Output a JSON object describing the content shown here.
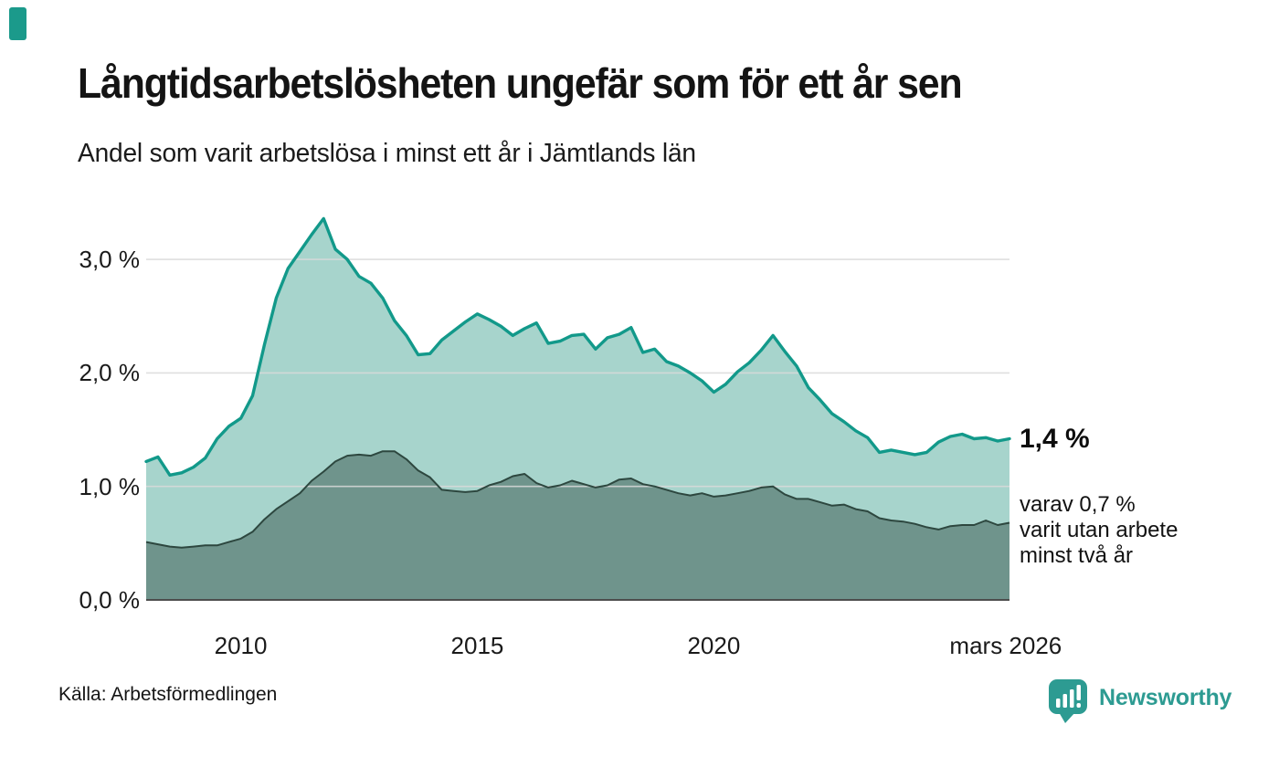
{
  "brand_color": "#2D9B92",
  "accent_color": "#1B9A8B",
  "chart_data": {
    "type": "area",
    "title": "Långtidsarbetslösheten ungefär som för ett år sen",
    "subtitle": "Andel som varit arbetslösa i minst ett år i Jämtlands län",
    "unit": "%",
    "grid": true,
    "legend": "none",
    "x_start": 2008.0,
    "x_end": 2026.25,
    "x_step": 0.25,
    "ylim": [
      0,
      3.6
    ],
    "y_ticks": [
      {
        "value": 3.0,
        "label": "3,0 %"
      },
      {
        "value": 2.0,
        "label": "2,0 %"
      },
      {
        "value": 1.0,
        "label": "1,0 %"
      },
      {
        "value": 0.0,
        "label": "0,0 %"
      }
    ],
    "x_ticks": [
      {
        "x": 2010,
        "label": "2010"
      },
      {
        "x": 2015,
        "label": "2015"
      },
      {
        "x": 2020,
        "label": "2020"
      },
      {
        "x": 2026.17,
        "label": "mars 2026"
      }
    ],
    "series": [
      {
        "name": "Arbetslösa minst ett år",
        "line": "#12998A",
        "fill": "#A7D4CC",
        "values": [
          1.22,
          1.26,
          1.1,
          1.12,
          1.17,
          1.25,
          1.42,
          1.53,
          1.6,
          1.8,
          2.25,
          2.66,
          2.92,
          3.07,
          3.22,
          3.36,
          3.09,
          3.0,
          2.85,
          2.79,
          2.66,
          2.46,
          2.33,
          2.16,
          2.17,
          2.29,
          2.37,
          2.45,
          2.52,
          2.47,
          2.41,
          2.33,
          2.39,
          2.44,
          2.26,
          2.28,
          2.33,
          2.34,
          2.21,
          2.31,
          2.34,
          2.4,
          2.18,
          2.21,
          2.1,
          2.06,
          2.0,
          1.93,
          1.83,
          1.9,
          2.01,
          2.09,
          2.2,
          2.33,
          2.19,
          2.06,
          1.87,
          1.76,
          1.64,
          1.57,
          1.49,
          1.43,
          1.3,
          1.32,
          1.3,
          1.28,
          1.3,
          1.39,
          1.44,
          1.46,
          1.42,
          1.43,
          1.4,
          1.42
        ]
      },
      {
        "name": "Arbetslösa minst två år",
        "line": "#2D473F",
        "fill": "#6F948C",
        "values": [
          0.51,
          0.49,
          0.47,
          0.46,
          0.47,
          0.48,
          0.48,
          0.51,
          0.54,
          0.6,
          0.71,
          0.8,
          0.87,
          0.94,
          1.05,
          1.13,
          1.22,
          1.27,
          1.28,
          1.27,
          1.31,
          1.31,
          1.24,
          1.14,
          1.08,
          0.97,
          0.96,
          0.95,
          0.96,
          1.01,
          1.04,
          1.09,
          1.11,
          1.03,
          0.99,
          1.01,
          1.05,
          1.02,
          0.99,
          1.01,
          1.06,
          1.07,
          1.02,
          1.0,
          0.97,
          0.94,
          0.92,
          0.94,
          0.91,
          0.92,
          0.94,
          0.96,
          0.99,
          1.0,
          0.93,
          0.89,
          0.89,
          0.86,
          0.83,
          0.84,
          0.8,
          0.78,
          0.72,
          0.7,
          0.69,
          0.67,
          0.64,
          0.62,
          0.65,
          0.66,
          0.66,
          0.7,
          0.66,
          0.68
        ]
      }
    ],
    "end_labels": {
      "primary": "1,4 %",
      "secondary": [
        "varav 0,7 %",
        "varit utan arbete",
        "minst två år"
      ]
    }
  },
  "footer": {
    "source": "Källa: Arbetsförmedlingen",
    "brand": "Newsworthy"
  }
}
